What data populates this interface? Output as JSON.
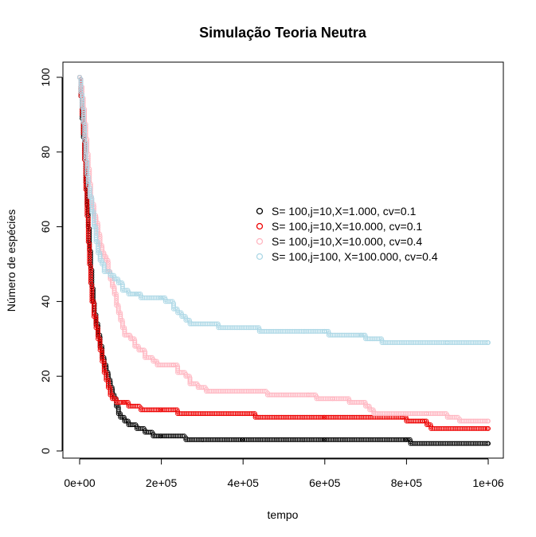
{
  "chart_data": {
    "type": "scatter",
    "title": "Simulação Teoria Neutra",
    "xlabel": "tempo",
    "ylabel": "Número de espécies",
    "xlim": [
      0,
      1000000
    ],
    "ylim": [
      0,
      100
    ],
    "x_ticks": [
      0,
      200000,
      400000,
      600000,
      800000,
      1000000
    ],
    "x_tick_labels": [
      "0e+00",
      "2e+05",
      "4e+05",
      "6e+05",
      "8e+05",
      "1e+06"
    ],
    "y_ticks": [
      0,
      20,
      40,
      60,
      80,
      100
    ],
    "y_tick_labels": [
      "0",
      "20",
      "40",
      "60",
      "80",
      "100"
    ],
    "legend_position": "right-center",
    "series": [
      {
        "name": "S= 100,j=10,X=1.000, cv=0.1",
        "color": "#000000",
        "points": [
          [
            0,
            100
          ],
          [
            3000,
            95
          ],
          [
            6000,
            89
          ],
          [
            9000,
            84
          ],
          [
            12000,
            78
          ],
          [
            15000,
            72
          ],
          [
            18000,
            66
          ],
          [
            21000,
            60
          ],
          [
            24000,
            54
          ],
          [
            27000,
            49
          ],
          [
            30000,
            44
          ],
          [
            33000,
            40
          ],
          [
            36000,
            37
          ],
          [
            40000,
            34
          ],
          [
            45000,
            31
          ],
          [
            50000,
            28
          ],
          [
            55000,
            25
          ],
          [
            60000,
            23
          ],
          [
            65000,
            21
          ],
          [
            70000,
            19
          ],
          [
            75000,
            17
          ],
          [
            80000,
            15
          ],
          [
            85000,
            14
          ],
          [
            90000,
            12
          ],
          [
            95000,
            10
          ],
          [
            100000,
            9
          ],
          [
            110000,
            8
          ],
          [
            120000,
            7
          ],
          [
            140000,
            6
          ],
          [
            160000,
            5
          ],
          [
            180000,
            4
          ],
          [
            200000,
            4
          ],
          [
            260000,
            3
          ],
          [
            400000,
            3
          ],
          [
            600000,
            3
          ],
          [
            800000,
            3
          ],
          [
            810000,
            2
          ],
          [
            1000000,
            2
          ]
        ]
      },
      {
        "name": "S= 100,j=10,X=10.000, cv=0.1",
        "color": "#ee0000",
        "points": [
          [
            0,
            100
          ],
          [
            3000,
            95
          ],
          [
            6000,
            90
          ],
          [
            9000,
            85
          ],
          [
            12000,
            78
          ],
          [
            15000,
            70
          ],
          [
            18000,
            63
          ],
          [
            21000,
            56
          ],
          [
            24000,
            50
          ],
          [
            27000,
            45
          ],
          [
            30000,
            40
          ],
          [
            35000,
            36
          ],
          [
            40000,
            33
          ],
          [
            45000,
            30
          ],
          [
            50000,
            27
          ],
          [
            55000,
            24
          ],
          [
            60000,
            21
          ],
          [
            65000,
            19
          ],
          [
            70000,
            17
          ],
          [
            75000,
            15
          ],
          [
            80000,
            14
          ],
          [
            90000,
            13
          ],
          [
            110000,
            13
          ],
          [
            120000,
            12
          ],
          [
            150000,
            11
          ],
          [
            200000,
            11
          ],
          [
            240000,
            10
          ],
          [
            300000,
            10
          ],
          [
            360000,
            10
          ],
          [
            430000,
            9
          ],
          [
            600000,
            9
          ],
          [
            790000,
            9
          ],
          [
            800000,
            8
          ],
          [
            840000,
            8
          ],
          [
            850000,
            7
          ],
          [
            860000,
            6
          ],
          [
            1000000,
            6
          ]
        ]
      },
      {
        "name": "S= 100,j=10,X=10.000, cv=0.4",
        "color": "#ffb6c1",
        "points": [
          [
            0,
            100
          ],
          [
            3000,
            98
          ],
          [
            6000,
            95
          ],
          [
            9000,
            92
          ],
          [
            12000,
            88
          ],
          [
            15000,
            84
          ],
          [
            18000,
            80
          ],
          [
            21000,
            76
          ],
          [
            24000,
            72
          ],
          [
            27000,
            68
          ],
          [
            30000,
            66
          ],
          [
            35000,
            63
          ],
          [
            40000,
            61
          ],
          [
            45000,
            58
          ],
          [
            50000,
            55
          ],
          [
            55000,
            53
          ],
          [
            60000,
            52
          ],
          [
            65000,
            51
          ],
          [
            70000,
            48
          ],
          [
            75000,
            46
          ],
          [
            80000,
            44
          ],
          [
            85000,
            42
          ],
          [
            90000,
            39
          ],
          [
            95000,
            37
          ],
          [
            100000,
            35
          ],
          [
            105000,
            33
          ],
          [
            110000,
            31
          ],
          [
            125000,
            30
          ],
          [
            135000,
            28
          ],
          [
            145000,
            27
          ],
          [
            160000,
            25
          ],
          [
            180000,
            24
          ],
          [
            190000,
            23
          ],
          [
            230000,
            23
          ],
          [
            240000,
            21
          ],
          [
            260000,
            20
          ],
          [
            270000,
            18
          ],
          [
            290000,
            17
          ],
          [
            310000,
            16
          ],
          [
            400000,
            16
          ],
          [
            460000,
            15
          ],
          [
            560000,
            15
          ],
          [
            580000,
            14
          ],
          [
            620000,
            14
          ],
          [
            660000,
            13
          ],
          [
            700000,
            12
          ],
          [
            710000,
            11
          ],
          [
            720000,
            10
          ],
          [
            850000,
            10
          ],
          [
            900000,
            9
          ],
          [
            930000,
            8
          ],
          [
            1000000,
            8
          ]
        ]
      },
      {
        "name": "S= 100,j=100, X=100.000, cv=0.4",
        "color": "#add8e6",
        "points": [
          [
            0,
            100
          ],
          [
            3000,
            96
          ],
          [
            6000,
            92
          ],
          [
            9000,
            88
          ],
          [
            12000,
            83
          ],
          [
            15000,
            78
          ],
          [
            18000,
            74
          ],
          [
            21000,
            71
          ],
          [
            25000,
            68
          ],
          [
            30000,
            64
          ],
          [
            35000,
            60
          ],
          [
            40000,
            56
          ],
          [
            45000,
            53
          ],
          [
            50000,
            51
          ],
          [
            55000,
            50
          ],
          [
            60000,
            48
          ],
          [
            75000,
            47
          ],
          [
            85000,
            46
          ],
          [
            95000,
            45
          ],
          [
            105000,
            43
          ],
          [
            120000,
            42
          ],
          [
            140000,
            42
          ],
          [
            150000,
            41
          ],
          [
            200000,
            41
          ],
          [
            210000,
            40
          ],
          [
            230000,
            38
          ],
          [
            240000,
            37
          ],
          [
            250000,
            36
          ],
          [
            260000,
            35
          ],
          [
            270000,
            34
          ],
          [
            300000,
            34
          ],
          [
            340000,
            33
          ],
          [
            430000,
            33
          ],
          [
            440000,
            32
          ],
          [
            600000,
            32
          ],
          [
            610000,
            31
          ],
          [
            690000,
            31
          ],
          [
            700000,
            30
          ],
          [
            740000,
            29
          ],
          [
            900000,
            29
          ],
          [
            1000000,
            29
          ]
        ]
      }
    ]
  }
}
